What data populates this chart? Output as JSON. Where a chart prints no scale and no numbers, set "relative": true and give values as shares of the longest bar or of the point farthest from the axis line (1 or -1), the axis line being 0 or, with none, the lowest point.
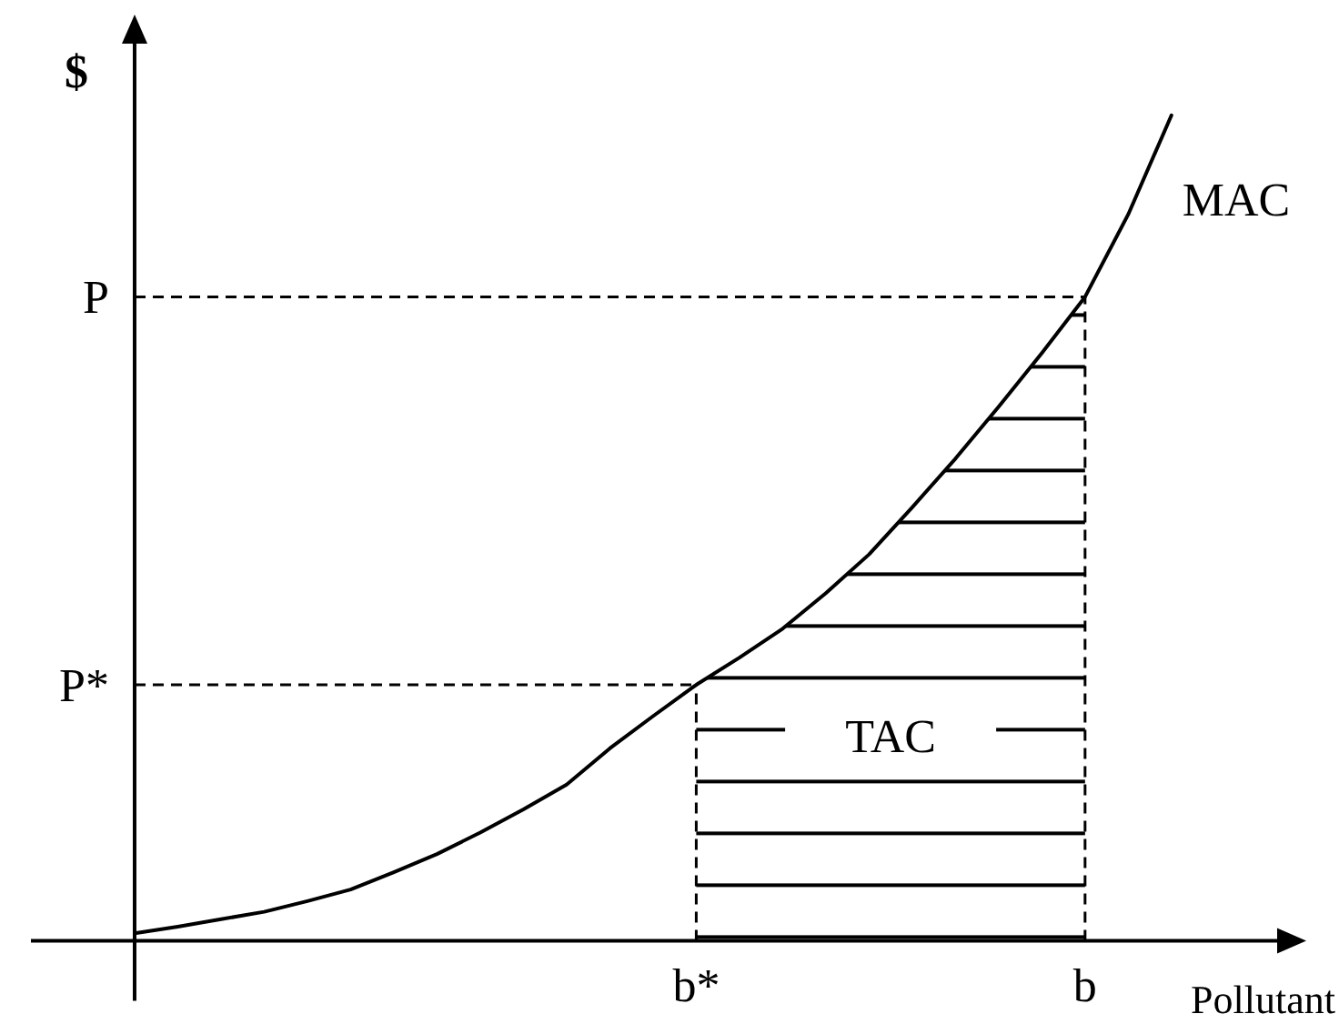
{
  "chart_data": {
    "type": "line",
    "relative": true,
    "ylabel": "$",
    "xlabel": "Pollutant",
    "marker": "none",
    "line_style": "solid",
    "categories": [
      null,
      null,
      null,
      null,
      null,
      null,
      null,
      null,
      null,
      null,
      null,
      null,
      null,
      "b*",
      null,
      null,
      null,
      null,
      null,
      null,
      null,
      null,
      "b",
      null,
      null
    ],
    "series": [
      {
        "name": "TAC",
        "type": "area",
        "color": "#000000",
        "values": [
          null,
          null,
          null,
          null,
          null,
          null,
          null,
          null,
          null,
          null,
          null,
          null,
          null,
          0.31,
          0.343,
          0.378,
          0.421,
          0.468,
          0.525,
          0.584,
          0.647,
          0.712,
          0.78,
          null,
          null
        ]
      },
      {
        "name": "MAC",
        "color": "#000000",
        "values": [
          0.009,
          0.017,
          0.026,
          0.035,
          0.048,
          0.062,
          0.083,
          0.105,
          0.131,
          0.159,
          0.189,
          0.233,
          0.272,
          0.31,
          0.343,
          0.378,
          0.421,
          0.468,
          0.525,
          0.584,
          0.647,
          0.712,
          0.78,
          0.88,
          1
        ]
      }
    ],
    "ref_lines": [
      {
        "axis": "y",
        "value": 0.78,
        "label": "P",
        "line_style": "dashed"
      },
      {
        "axis": "y",
        "value": 0.31,
        "label": "P*",
        "line_style": "dashed"
      },
      {
        "axis": "x",
        "value": "b*",
        "line_style": "dashed"
      },
      {
        "axis": "x",
        "value": "b",
        "line_style": "dashed"
      }
    ]
  }
}
